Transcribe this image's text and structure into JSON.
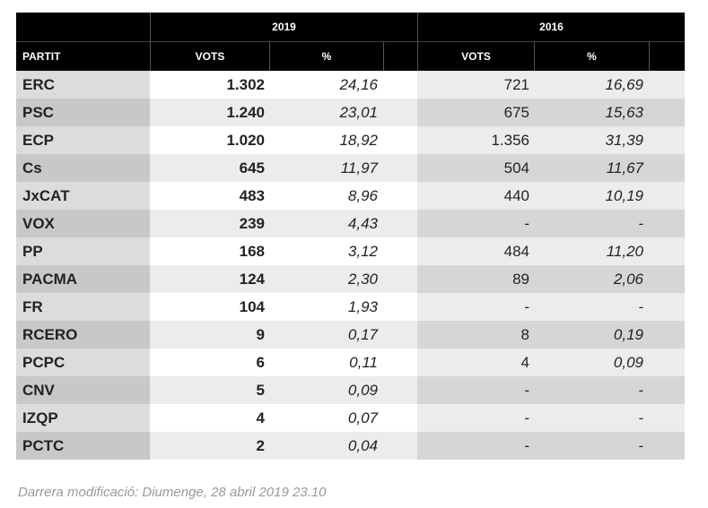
{
  "header": {
    "year_2019": "2019",
    "year_2016": "2016",
    "col_party": "PARTIT",
    "col_votes_2019": "VOTS",
    "col_pct_2019": "%",
    "col_votes_2016": "VOTS",
    "col_pct_2016": "%"
  },
  "rows": [
    {
      "party": "ERC",
      "votes_2019": "1.302",
      "pct_2019": "24,16",
      "votes_2016": "721",
      "pct_2016": "16,69"
    },
    {
      "party": "PSC",
      "votes_2019": "1.240",
      "pct_2019": "23,01",
      "votes_2016": "675",
      "pct_2016": "15,63"
    },
    {
      "party": "ECP",
      "votes_2019": "1.020",
      "pct_2019": "18,92",
      "votes_2016": "1.356",
      "pct_2016": "31,39"
    },
    {
      "party": "Cs",
      "votes_2019": "645",
      "pct_2019": "11,97",
      "votes_2016": "504",
      "pct_2016": "11,67"
    },
    {
      "party": "JxCAT",
      "votes_2019": "483",
      "pct_2019": "8,96",
      "votes_2016": "440",
      "pct_2016": "10,19"
    },
    {
      "party": "VOX",
      "votes_2019": "239",
      "pct_2019": "4,43",
      "votes_2016": "-",
      "pct_2016": "-"
    },
    {
      "party": "PP",
      "votes_2019": "168",
      "pct_2019": "3,12",
      "votes_2016": "484",
      "pct_2016": "11,20"
    },
    {
      "party": "PACMA",
      "votes_2019": "124",
      "pct_2019": "2,30",
      "votes_2016": "89",
      "pct_2016": "2,06"
    },
    {
      "party": "FR",
      "votes_2019": "104",
      "pct_2019": "1,93",
      "votes_2016": "-",
      "pct_2016": "-"
    },
    {
      "party": "RCERO",
      "votes_2019": "9",
      "pct_2019": "0,17",
      "votes_2016": "8",
      "pct_2016": "0,19"
    },
    {
      "party": "PCPC",
      "votes_2019": "6",
      "pct_2019": "0,11",
      "votes_2016": "4",
      "pct_2016": "0,09"
    },
    {
      "party": "CNV",
      "votes_2019": "5",
      "pct_2019": "0,09",
      "votes_2016": "-",
      "pct_2016": "-"
    },
    {
      "party": "IZQP",
      "votes_2019": "4",
      "pct_2019": "0,07",
      "votes_2016": "-",
      "pct_2016": "-"
    },
    {
      "party": "PCTC",
      "votes_2019": "2",
      "pct_2019": "0,04",
      "votes_2016": "-",
      "pct_2016": "-"
    }
  ],
  "footer": {
    "last_modified": "Darrera modificació: Diumenge, 28 abril 2019 23.10"
  }
}
